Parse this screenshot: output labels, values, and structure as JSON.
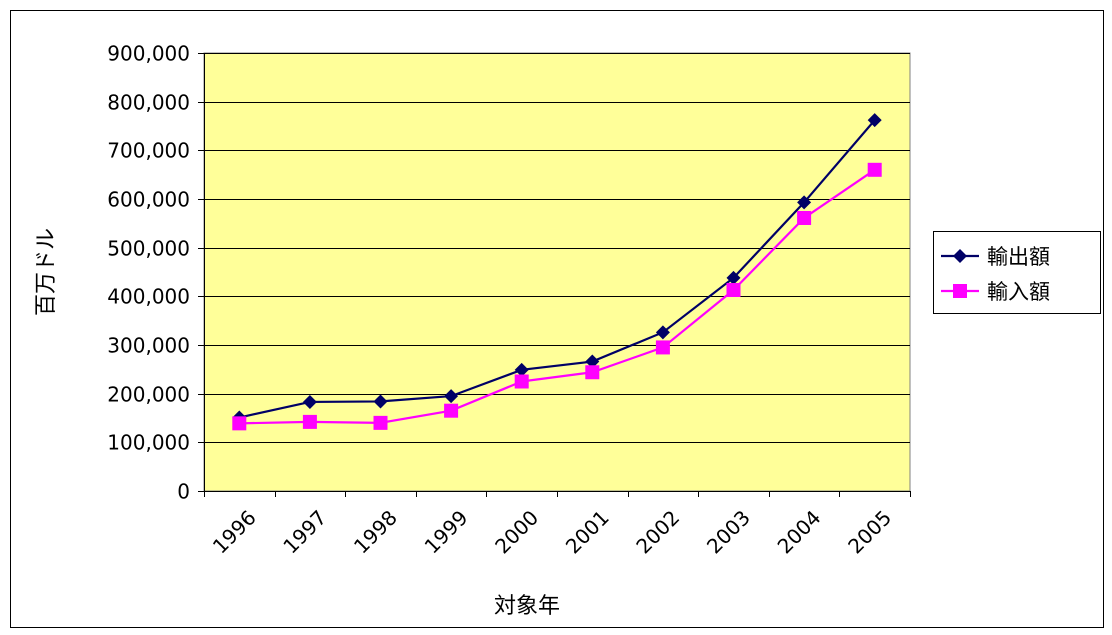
{
  "chart_data": {
    "type": "line",
    "categories": [
      "1996",
      "1997",
      "1998",
      "1999",
      "2000",
      "2001",
      "2002",
      "2003",
      "2004",
      "2005"
    ],
    "series": [
      {
        "name": "輸出額",
        "color": "#000066",
        "marker": "diamond",
        "values": [
          151000,
          183000,
          184000,
          195000,
          249000,
          266000,
          326000,
          438000,
          593000,
          762000
        ]
      },
      {
        "name": "輸入額",
        "color": "#ff00ff",
        "marker": "square",
        "values": [
          139000,
          142000,
          140000,
          165000,
          225000,
          244000,
          295000,
          413000,
          561000,
          660000
        ]
      }
    ],
    "xlabel": "対象年",
    "ylabel": "百万ドル",
    "ylim": [
      0,
      900000
    ],
    "ytick_step": 100000,
    "ytick_labels": [
      "0",
      "100,000",
      "200,000",
      "300,000",
      "400,000",
      "500,000",
      "600,000",
      "700,000",
      "800,000",
      "900,000"
    ],
    "grid": true,
    "plot_background": "#ffff99",
    "legend_position": "right"
  }
}
